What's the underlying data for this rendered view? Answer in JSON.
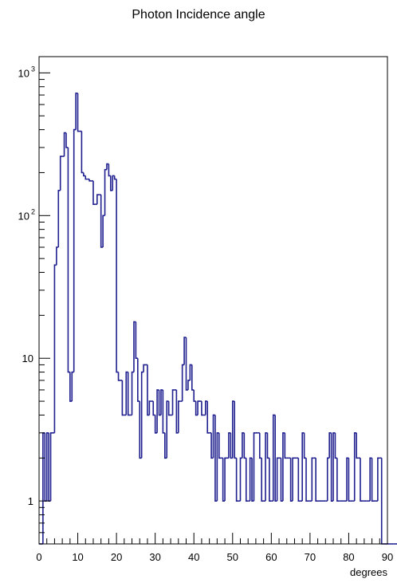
{
  "chart_data": {
    "type": "histogram",
    "title": "Photon Incidence angle",
    "xlabel": "degrees",
    "ylabel": "",
    "xlim": [
      0,
      90
    ],
    "ylim": [
      0.5,
      1300
    ],
    "log_y": true,
    "grid": false,
    "line_color": "#1f1f8f",
    "bin_width": 0.5,
    "x_ticks": [
      "0",
      "10",
      "20",
      "30",
      "40",
      "50",
      "60",
      "70",
      "80",
      "90"
    ],
    "y_ticks": [
      {
        "value": 1,
        "base": "1",
        "exp": ""
      },
      {
        "value": 10,
        "base": "10",
        "exp": ""
      },
      {
        "value": 100,
        "base": "10",
        "exp": "2"
      },
      {
        "value": 1000,
        "base": "10",
        "exp": "3"
      }
    ],
    "counts": [
      0,
      0,
      3,
      1,
      3,
      1,
      3,
      3,
      45,
      60,
      150,
      260,
      260,
      380,
      300,
      8,
      5,
      8,
      400,
      720,
      390,
      390,
      200,
      190,
      180,
      180,
      175,
      175,
      120,
      120,
      140,
      140,
      60,
      100,
      210,
      230,
      190,
      150,
      190,
      180,
      8,
      7,
      7,
      4,
      4,
      8,
      4,
      4,
      8,
      18,
      10,
      5,
      2,
      8,
      9,
      9,
      4,
      5,
      5,
      4,
      3,
      6,
      4,
      6,
      3,
      2,
      5,
      4,
      4,
      6,
      6,
      3,
      5,
      5,
      9,
      14,
      6,
      7,
      9,
      6,
      5,
      4,
      5,
      5,
      4,
      4,
      5,
      3,
      3,
      2,
      4,
      1,
      3,
      2,
      2,
      1,
      2,
      2,
      3,
      2,
      5,
      2,
      1,
      1,
      2,
      3,
      2,
      1,
      1,
      2,
      1,
      3,
      3,
      3,
      2,
      1,
      1,
      3,
      2,
      1,
      1,
      4,
      1,
      2,
      2,
      1,
      3,
      2,
      2,
      2,
      1,
      2,
      2,
      2,
      1,
      1,
      3,
      2,
      1,
      1,
      1,
      2,
      2,
      1,
      1,
      1,
      1,
      1,
      1,
      2,
      3,
      1,
      3,
      2,
      1,
      1,
      1,
      1,
      1,
      2,
      1,
      1,
      1,
      3,
      2,
      2,
      1,
      1,
      1,
      1,
      1,
      2,
      1,
      1,
      1,
      2,
      2,
      0,
      0,
      0,
      0,
      0,
      0,
      0,
      0,
      0,
      0,
      0,
      0,
      0
    ]
  }
}
